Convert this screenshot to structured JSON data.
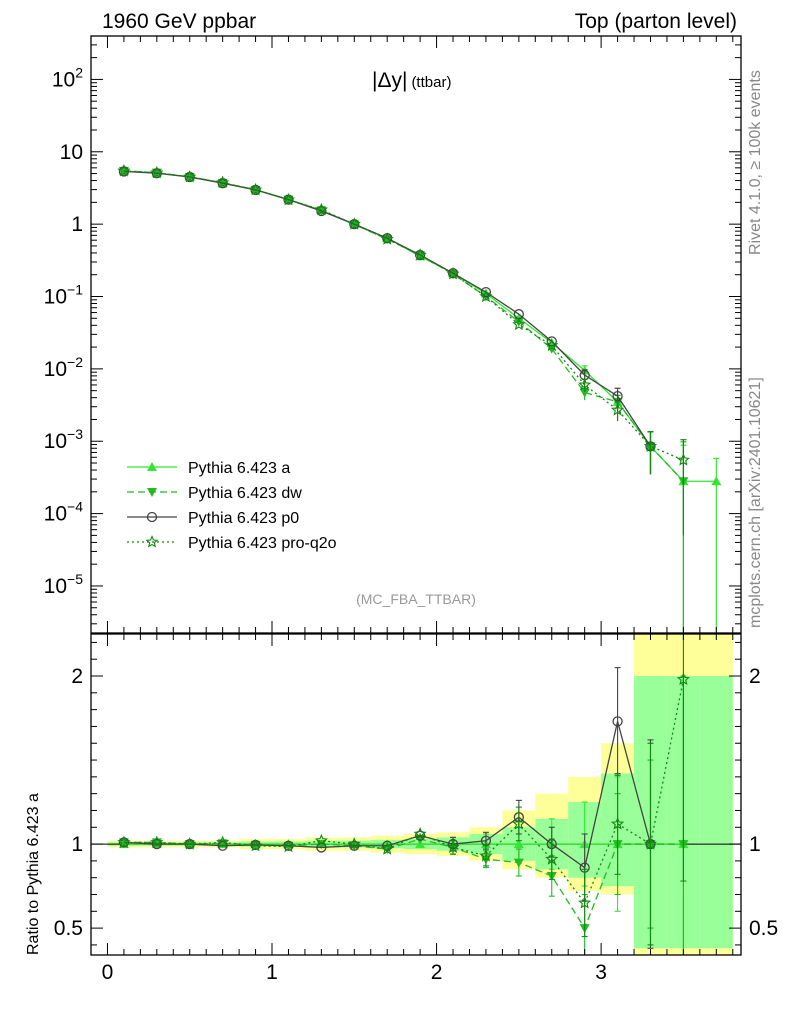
{
  "header": {
    "left": "1960 GeV ppbar",
    "right": "Top (parton level)"
  },
  "side_labels": {
    "rivet": "Rivet 4.1.0, ≥ 100k events",
    "site": "mcplots.cern.ch [arXiv:2401.10621]"
  },
  "chart_data": {
    "type": "line",
    "title_main": "|Δy|",
    "title_sub": "(ttbar)",
    "analysis": "(MC_FBA_TTBAR)",
    "xlabel": "",
    "xlim": [
      -0.1,
      3.85
    ],
    "x_ticks": [
      "0",
      "1",
      "2",
      "3"
    ],
    "main": {
      "yscale": "log",
      "ylim_log10": [
        -5.65,
        2.6
      ],
      "y_ticks": [
        {
          "exp": 2,
          "base": "10",
          "sup": "2"
        },
        {
          "exp": 1,
          "base": "10",
          "sup": ""
        },
        {
          "exp": 0,
          "base": "1",
          "sup": ""
        },
        {
          "exp": -1,
          "base": "10",
          "sup": "−1"
        },
        {
          "exp": -2,
          "base": "10",
          "sup": "−2"
        },
        {
          "exp": -3,
          "base": "10",
          "sup": "−3"
        },
        {
          "exp": -4,
          "base": "10",
          "sup": "−4"
        },
        {
          "exp": -5,
          "base": "10",
          "sup": "−5"
        }
      ]
    },
    "ratio": {
      "ylabel": "Ratio to Pythia 6.423 a",
      "ylim": [
        0.34,
        2.25
      ],
      "y_ticks": [
        "0.5",
        "1",
        "2"
      ]
    },
    "x": [
      0.1,
      0.3,
      0.5,
      0.7,
      0.9,
      1.1,
      1.3,
      1.5,
      1.7,
      1.9,
      2.1,
      2.3,
      2.5,
      2.7,
      2.9,
      3.1,
      3.3,
      3.5,
      3.7
    ],
    "band_edges": [
      0.0,
      0.2,
      0.4,
      0.6,
      0.8,
      1.0,
      1.2,
      1.4,
      1.6,
      1.8,
      2.0,
      2.2,
      2.4,
      2.6,
      2.8,
      3.0,
      3.2,
      3.4,
      3.6,
      3.8
    ],
    "band_yellow_lo": [
      0.98,
      0.98,
      0.98,
      0.98,
      0.97,
      0.97,
      0.96,
      0.96,
      0.95,
      0.94,
      0.93,
      0.9,
      0.85,
      0.8,
      0.72,
      0.7,
      0.3,
      0.3,
      0.3
    ],
    "band_yellow_hi": [
      1.02,
      1.02,
      1.02,
      1.02,
      1.03,
      1.03,
      1.04,
      1.04,
      1.05,
      1.06,
      1.07,
      1.1,
      1.2,
      1.3,
      1.4,
      1.6,
      2.25,
      2.25,
      2.25
    ],
    "band_green_lo": [
      0.99,
      0.99,
      0.99,
      0.99,
      0.985,
      0.985,
      0.98,
      0.98,
      0.975,
      0.97,
      0.96,
      0.94,
      0.9,
      0.85,
      0.8,
      0.75,
      0.38,
      0.38,
      0.38
    ],
    "band_green_hi": [
      1.01,
      1.01,
      1.01,
      1.01,
      1.015,
      1.015,
      1.02,
      1.02,
      1.025,
      1.03,
      1.04,
      1.06,
      1.1,
      1.15,
      1.25,
      1.42,
      2.0,
      2.0,
      2.0
    ],
    "series": [
      {
        "name": "Pythia 6.423 a",
        "color": "#33e633",
        "marker": "triangle-up",
        "dash": "",
        "values": [
          5.4,
          5.1,
          4.5,
          3.7,
          3.0,
          2.2,
          1.55,
          1.0,
          0.64,
          0.36,
          0.21,
          0.11,
          0.05,
          0.023,
          0.0095,
          0.0035,
          0.00085,
          0.00028,
          0.00028
        ],
        "err_hi": [
          0,
          0,
          0,
          0,
          0,
          0,
          0,
          0,
          0,
          0,
          0,
          0,
          0,
          0,
          0.0015,
          0.0008,
          0.0005,
          0.0006,
          0.0003
        ],
        "ratio": [
          1.0,
          1.0,
          1.0,
          1.0,
          1.0,
          1.0,
          1.0,
          1.0,
          1.0,
          1.0,
          1.0,
          1.0,
          1.0,
          1.0,
          1.0,
          1.0,
          1.0,
          1.0,
          null
        ],
        "ratio_err": [
          0.01,
          0.01,
          0.01,
          0.01,
          0.015,
          0.015,
          0.02,
          0.02,
          0.025,
          0.03,
          0.04,
          0.06,
          0.1,
          0.15,
          0.25,
          0.4,
          0.6,
          1.0,
          null
        ]
      },
      {
        "name": "Pythia 6.423 dw",
        "color": "#22bb22",
        "marker": "triangle-down",
        "dash": "7,4",
        "values": [
          5.45,
          5.15,
          4.5,
          3.72,
          2.98,
          2.18,
          1.55,
          0.99,
          0.62,
          0.37,
          0.205,
          0.1,
          0.045,
          0.019,
          0.0047,
          0.0035,
          0.00085,
          0.00028,
          null
        ],
        "err_hi": [
          0,
          0,
          0,
          0,
          0,
          0,
          0,
          0,
          0,
          0,
          0,
          0,
          0,
          0,
          0.001,
          0.0008,
          0.0005,
          0.0007,
          null
        ],
        "ratio": [
          1.01,
          1.01,
          1.0,
          1.005,
          0.995,
          0.99,
          1.0,
          0.99,
          0.97,
          1.03,
          0.98,
          0.91,
          0.89,
          0.81,
          0.5,
          1.0,
          1.0,
          1.0,
          null
        ],
        "ratio_err": [
          0.01,
          0.01,
          0.01,
          0.01,
          0.015,
          0.015,
          0.02,
          0.02,
          0.02,
          0.03,
          0.04,
          0.05,
          0.08,
          0.12,
          0.2,
          0.3,
          0.5,
          1.0,
          null
        ]
      },
      {
        "name": "Pythia 6.423 p0",
        "color": "#444444",
        "marker": "circle-open",
        "dash": "",
        "values": [
          5.35,
          5.05,
          4.48,
          3.68,
          2.97,
          2.18,
          1.52,
          1.0,
          0.64,
          0.375,
          0.21,
          0.115,
          0.057,
          0.024,
          0.0082,
          0.0042,
          0.00085,
          null,
          null
        ],
        "err_hi": [
          0,
          0,
          0,
          0,
          0,
          0,
          0,
          0,
          0,
          0,
          0,
          0,
          0,
          0,
          0.0015,
          0.0012,
          0.0005,
          null,
          null
        ],
        "ratio": [
          1.01,
          1.0,
          1.0,
          0.99,
          0.995,
          0.99,
          0.98,
          0.99,
          0.99,
          1.05,
          1.0,
          1.02,
          1.16,
          1.0,
          0.86,
          1.73,
          1.0,
          null,
          null
        ],
        "ratio_err": [
          0.01,
          0.01,
          0.01,
          0.01,
          0.015,
          0.015,
          0.02,
          0.02,
          0.02,
          0.03,
          0.04,
          0.05,
          0.1,
          0.1,
          0.2,
          0.32,
          0.62,
          null,
          null
        ]
      },
      {
        "name": "Pythia 6.423 pro-q2o",
        "color": "#118811",
        "marker": "star",
        "dash": "2,3",
        "values": [
          5.45,
          5.12,
          4.5,
          3.75,
          2.98,
          2.17,
          1.58,
          1.0,
          0.62,
          0.375,
          0.205,
          0.1,
          0.041,
          0.021,
          0.006,
          0.0027,
          0.00085,
          0.00055,
          null
        ],
        "err_hi": [
          0,
          0,
          0,
          0,
          0,
          0,
          0,
          0,
          0,
          0,
          0,
          0,
          0,
          0,
          0.0012,
          0.0008,
          0.0005,
          0.0005,
          null
        ],
        "ratio": [
          1.01,
          1.01,
          1.0,
          1.01,
          0.99,
          0.985,
          1.02,
          1.0,
          0.97,
          1.06,
          0.98,
          0.93,
          1.12,
          0.91,
          0.65,
          1.12,
          1.0,
          1.98,
          null
        ],
        "ratio_err": [
          0.01,
          0.01,
          0.01,
          0.01,
          0.015,
          0.015,
          0.02,
          0.02,
          0.02,
          0.03,
          0.04,
          0.06,
          0.1,
          0.12,
          0.2,
          0.3,
          0.6,
          1.2,
          null
        ]
      }
    ]
  }
}
